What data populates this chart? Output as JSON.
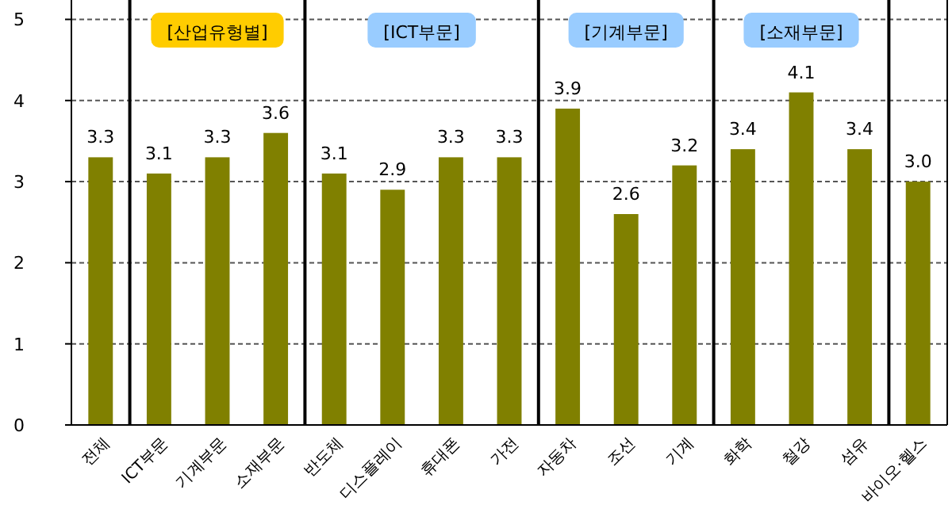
{
  "chart_data": {
    "type": "bar",
    "categories": [
      "전체",
      "ICT부문",
      "기계부문",
      "소재부문",
      "반도체",
      "디스플레이",
      "휴대폰",
      "가전",
      "자동차",
      "조선",
      "기계",
      "화학",
      "철강",
      "섬유",
      "바이오·헬스"
    ],
    "values": [
      3.3,
      3.1,
      3.3,
      3.6,
      3.1,
      2.9,
      3.3,
      3.3,
      3.9,
      2.6,
      3.2,
      3.4,
      4.1,
      3.4,
      3.0
    ],
    "value_labels": [
      "3.3",
      "3.1",
      "3.3",
      "3.6",
      "3.1",
      "2.9",
      "3.3",
      "3.3",
      "3.9",
      "2.6",
      "3.2",
      "3.4",
      "4.1",
      "3.4",
      "3.0"
    ],
    "color": "#808000",
    "ylim": [
      0,
      5.2
    ],
    "yticks": [
      0,
      1,
      2,
      3,
      4,
      5
    ],
    "grid": "y",
    "annotations": [
      "[산업유형별]",
      "[ICT부문]",
      "[기계부문]",
      "[소재부문]"
    ]
  }
}
